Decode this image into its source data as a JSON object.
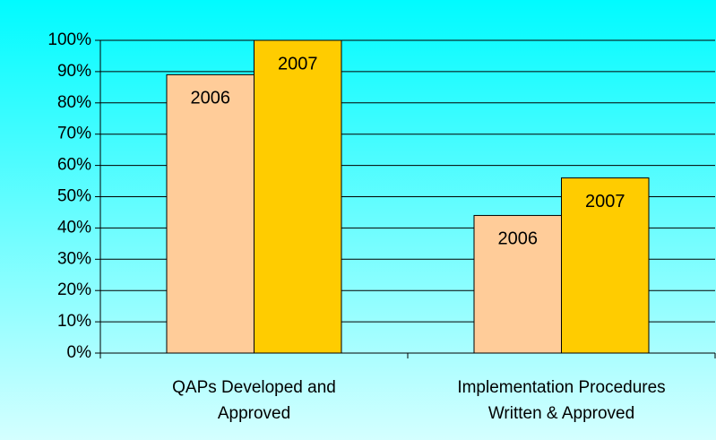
{
  "chart_data": {
    "type": "bar",
    "categories": [
      "QAPs Developed and Approved",
      "Implementation Procedures Written & Approved"
    ],
    "series": [
      {
        "name": "2006",
        "color": "#ffcc99",
        "values": [
          89,
          44
        ]
      },
      {
        "name": "2007",
        "color": "#ffcc00",
        "values": [
          100,
          56
        ]
      }
    ],
    "ylim": [
      0,
      100
    ],
    "yticks": [
      {
        "value": 0,
        "label": "0%"
      },
      {
        "value": 10,
        "label": "10%"
      },
      {
        "value": 20,
        "label": "20%"
      },
      {
        "value": 30,
        "label": "30%"
      },
      {
        "value": 40,
        "label": "40%"
      },
      {
        "value": 50,
        "label": "50%"
      },
      {
        "value": 60,
        "label": "60%"
      },
      {
        "value": 70,
        "label": "70%"
      },
      {
        "value": 80,
        "label": "80%"
      },
      {
        "value": 90,
        "label": "90%"
      },
      {
        "value": 100,
        "label": "100%"
      }
    ],
    "grid": true
  }
}
